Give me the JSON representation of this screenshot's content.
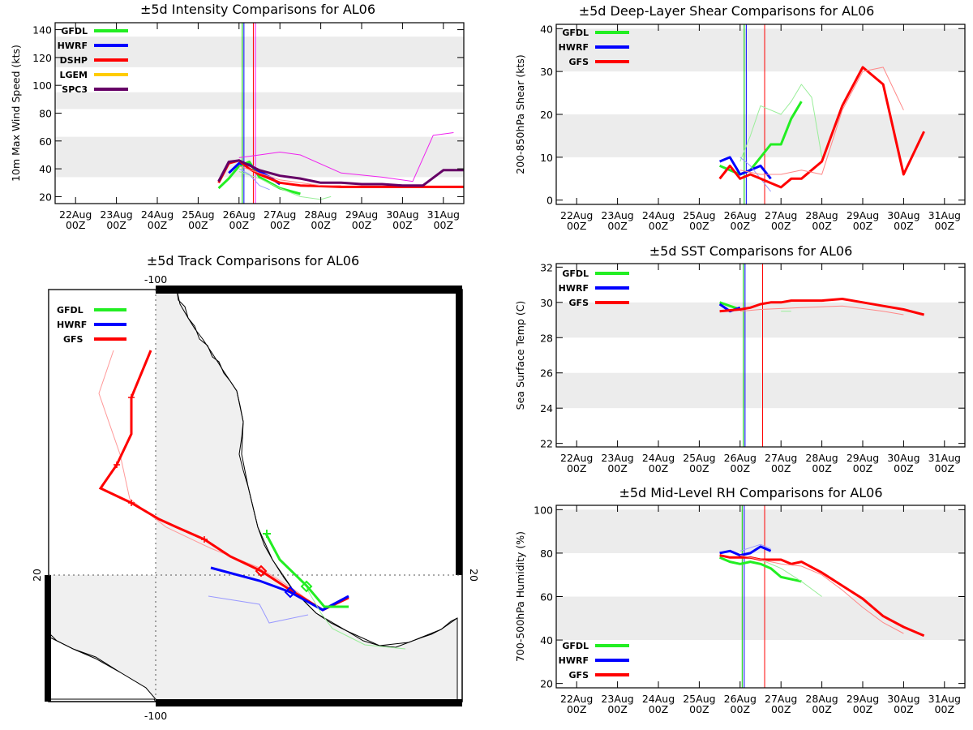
{
  "charts": {
    "intensity": {
      "type": "line",
      "title": "±5d Intensity Comparisons for AL06",
      "ylabel": "10m Max Wind Speed (kts)",
      "xlim": [
        0,
        10
      ],
      "ylim": [
        15,
        145
      ],
      "yticks": [
        "20",
        "40",
        "60",
        "80",
        "100",
        "120",
        "140"
      ],
      "bands": [
        [
          34,
          63
        ],
        [
          83,
          95
        ],
        [
          113,
          135
        ]
      ],
      "verticals": [
        {
          "x": 4.58,
          "color": "#00cc00"
        },
        {
          "x": 4.62,
          "color": "#0000ff"
        },
        {
          "x": 4.85,
          "color": "#ff0000"
        },
        {
          "x": 4.9,
          "color": "#ff00ff"
        }
      ],
      "legend": [
        "GFDL",
        "HWRF",
        "DSHP",
        "LGEM",
        "SPC3"
      ],
      "series": [
        {
          "name": "GFDL",
          "color": "#22ee22",
          "w": 3,
          "pts": [
            [
              4,
              26
            ],
            [
              4.25,
              33
            ],
            [
              4.5,
              42
            ],
            [
              4.75,
              45
            ],
            [
              5,
              34
            ],
            [
              5.5,
              26
            ],
            [
              6,
              22
            ]
          ]
        },
        {
          "name": "GFDL-prev",
          "color": "#99ee99",
          "w": 1,
          "pts": [
            [
              4.5,
              38
            ],
            [
              5,
              33
            ],
            [
              5.5,
              26
            ],
            [
              6,
              20
            ],
            [
              6.5,
              18
            ],
            [
              6.75,
              20
            ]
          ]
        },
        {
          "name": "HWRF",
          "color": "#0000ff",
          "w": 3,
          "pts": [
            [
              4.25,
              37
            ],
            [
              4.5,
              44
            ],
            [
              4.75,
              43
            ],
            [
              5,
              38
            ],
            [
              5.25,
              34
            ],
            [
              5.5,
              29
            ]
          ]
        },
        {
          "name": "HWRF-prev",
          "color": "#9999ff",
          "w": 1,
          "pts": [
            [
              4.5,
              40
            ],
            [
              4.75,
              36
            ],
            [
              5,
              28
            ],
            [
              5.25,
              25
            ]
          ]
        },
        {
          "name": "DSHP",
          "color": "#ff0000",
          "w": 3,
          "pts": [
            [
              4,
              30
            ],
            [
              4.25,
              44
            ],
            [
              4.5,
              46
            ],
            [
              4.75,
              40
            ],
            [
              5,
              36
            ],
            [
              5.5,
              30
            ],
            [
              6,
              28
            ],
            [
              7,
              27
            ],
            [
              8,
              27
            ],
            [
              9,
              27
            ],
            [
              10,
              27
            ]
          ]
        },
        {
          "name": "DSHP-prev",
          "color": "#ff8888",
          "w": 1,
          "pts": [
            [
              4.5,
              42
            ],
            [
              5,
              37
            ],
            [
              5.5,
              32
            ],
            [
              6,
              30
            ],
            [
              6.5,
              28
            ],
            [
              7,
              28
            ]
          ]
        },
        {
          "name": "SPC3",
          "color": "#660066",
          "w": 3,
          "pts": [
            [
              4,
              31
            ],
            [
              4.25,
              45
            ],
            [
              4.5,
              46
            ],
            [
              5,
              39
            ],
            [
              5.5,
              35
            ],
            [
              6,
              33
            ],
            [
              6.5,
              30
            ],
            [
              7,
              30
            ],
            [
              7.5,
              29
            ],
            [
              8,
              29
            ],
            [
              8.5,
              28
            ],
            [
              9,
              28
            ],
            [
              9.5,
              39
            ],
            [
              10,
              39
            ]
          ]
        },
        {
          "name": "SPC3-prev",
          "color": "#ee22ee",
          "w": 1,
          "pts": [
            [
              4.5,
              48
            ],
            [
              5,
              50
            ],
            [
              5.5,
              52
            ],
            [
              6,
              50
            ],
            [
              7,
              37
            ],
            [
              8,
              34
            ],
            [
              8.75,
              31
            ],
            [
              9.25,
              64
            ],
            [
              9.75,
              66
            ]
          ]
        }
      ]
    },
    "shear": {
      "type": "line",
      "title": "±5d Deep-Layer Shear Comparisons for AL06",
      "ylabel": "200-850hPa Shear (kts)",
      "xlim": [
        0,
        10
      ],
      "ylim": [
        -1,
        41
      ],
      "yticks": [
        "0",
        "10",
        "20",
        "30",
        "40"
      ],
      "bands": [
        [
          10,
          20
        ],
        [
          30,
          40
        ]
      ],
      "verticals": [
        {
          "x": 4.6,
          "color": "#00cc00"
        },
        {
          "x": 4.65,
          "color": "#0000ff"
        },
        {
          "x": 5.1,
          "color": "#ff0000"
        }
      ],
      "legend": [
        "GFDL",
        "HWRF",
        "GFS"
      ],
      "series": [
        {
          "name": "GFDL",
          "color": "#22ee22",
          "w": 3,
          "pts": [
            [
              4,
              8
            ],
            [
              4.25,
              7
            ],
            [
              4.5,
              6
            ],
            [
              4.75,
              7
            ],
            [
              5,
              10
            ],
            [
              5.25,
              13
            ],
            [
              5.5,
              13
            ],
            [
              5.75,
              19
            ],
            [
              6,
              23
            ]
          ]
        },
        {
          "name": "GFDL-prev",
          "color": "#99ee99",
          "w": 1,
          "pts": [
            [
              4.5,
              9
            ],
            [
              4.75,
              15
            ],
            [
              5,
              22
            ],
            [
              5.5,
              20
            ],
            [
              5.75,
              23
            ],
            [
              6,
              27
            ],
            [
              6.25,
              24
            ],
            [
              6.5,
              10
            ]
          ]
        },
        {
          "name": "HWRF",
          "color": "#0000ff",
          "w": 3,
          "pts": [
            [
              4,
              9
            ],
            [
              4.25,
              10
            ],
            [
              4.5,
              6
            ],
            [
              4.75,
              7
            ],
            [
              5,
              8
            ],
            [
              5.25,
              5
            ]
          ]
        },
        {
          "name": "HWRF-prev",
          "color": "#9999ff",
          "w": 1,
          "pts": [
            [
              4.5,
              10
            ],
            [
              4.75,
              8
            ],
            [
              5,
              5
            ],
            [
              5.25,
              2
            ]
          ]
        },
        {
          "name": "GFS",
          "color": "#ff0000",
          "w": 3,
          "pts": [
            [
              4,
              5
            ],
            [
              4.25,
              8
            ],
            [
              4.5,
              5
            ],
            [
              4.75,
              6
            ],
            [
              5,
              5
            ],
            [
              5.25,
              4
            ],
            [
              5.5,
              3
            ],
            [
              5.75,
              5
            ],
            [
              6,
              5
            ],
            [
              6.5,
              9
            ],
            [
              7,
              22
            ],
            [
              7.5,
              31
            ],
            [
              8,
              27
            ],
            [
              8.5,
              6
            ],
            [
              9,
              16
            ]
          ]
        },
        {
          "name": "GFS-prev",
          "color": "#ff8888",
          "w": 1,
          "pts": [
            [
              4.5,
              7
            ],
            [
              5,
              6
            ],
            [
              5.5,
              6
            ],
            [
              6,
              7
            ],
            [
              6.5,
              6
            ],
            [
              7,
              21
            ],
            [
              7.5,
              30
            ],
            [
              8,
              31
            ],
            [
              8.5,
              21
            ]
          ]
        }
      ]
    },
    "sst": {
      "type": "line",
      "title": "±5d SST Comparisons for AL06",
      "ylabel": "Sea Surface Temp (C)",
      "xlim": [
        0,
        10
      ],
      "ylim": [
        21.8,
        32.2
      ],
      "yticks": [
        "22",
        "24",
        "26",
        "28",
        "30",
        "32"
      ],
      "bands": [
        [
          24,
          26
        ],
        [
          28,
          30
        ]
      ],
      "verticals": [
        {
          "x": 4.58,
          "color": "#00cc00"
        },
        {
          "x": 4.62,
          "color": "#0000ff"
        },
        {
          "x": 5.05,
          "color": "#ff0000"
        }
      ],
      "legend": [
        "GFDL",
        "HWRF",
        "GFS"
      ],
      "series": [
        {
          "name": "GFDL",
          "color": "#22ee22",
          "w": 3,
          "pts": [
            [
              4,
              30.0
            ],
            [
              4.25,
              29.8
            ],
            [
              4.5,
              29.6
            ]
          ]
        },
        {
          "name": "GFDL-prev",
          "color": "#99ee99",
          "w": 1,
          "pts": [
            [
              5.5,
              29.5
            ],
            [
              5.75,
              29.5
            ]
          ]
        },
        {
          "name": "HWRF",
          "color": "#0000ff",
          "w": 3,
          "pts": [
            [
              4,
              29.9
            ],
            [
              4.25,
              29.5
            ],
            [
              4.5,
              29.7
            ]
          ]
        },
        {
          "name": "GFS",
          "color": "#ff0000",
          "w": 3,
          "pts": [
            [
              4,
              29.5
            ],
            [
              4.5,
              29.6
            ],
            [
              4.75,
              29.7
            ],
            [
              5,
              29.9
            ],
            [
              5.25,
              30.0
            ],
            [
              5.5,
              30.0
            ],
            [
              5.75,
              30.1
            ],
            [
              6,
              30.1
            ],
            [
              6.5,
              30.1
            ],
            [
              7,
              30.2
            ],
            [
              7.5,
              30.0
            ],
            [
              8,
              29.8
            ],
            [
              8.5,
              29.6
            ],
            [
              9,
              29.3
            ]
          ]
        },
        {
          "name": "GFS-prev",
          "color": "#ff8888",
          "w": 1,
          "pts": [
            [
              4.5,
              29.5
            ],
            [
              5,
              29.6
            ],
            [
              6,
              29.7
            ],
            [
              7,
              29.8
            ],
            [
              8,
              29.5
            ],
            [
              8.5,
              29.3
            ]
          ]
        }
      ]
    },
    "rh": {
      "type": "line",
      "title": "±5d Mid-Level RH Comparisons for AL06",
      "ylabel": "700-500hPa Humidity (%)",
      "xlim": [
        0,
        10
      ],
      "ylim": [
        18,
        102
      ],
      "yticks": [
        "20",
        "40",
        "60",
        "80",
        "100"
      ],
      "bands": [
        [
          40,
          60
        ],
        [
          80,
          100
        ]
      ],
      "verticals": [
        {
          "x": 4.55,
          "color": "#00cc00"
        },
        {
          "x": 4.6,
          "color": "#0000ff"
        },
        {
          "x": 5.1,
          "color": "#ff0000"
        }
      ],
      "legend": [
        "GFDL",
        "HWRF",
        "GFS"
      ],
      "series": [
        {
          "name": "GFDL",
          "color": "#22ee22",
          "w": 3,
          "pts": [
            [
              4,
              78
            ],
            [
              4.25,
              76
            ],
            [
              4.5,
              75
            ],
            [
              4.75,
              76
            ],
            [
              5,
              75
            ],
            [
              5.25,
              73
            ],
            [
              5.5,
              69
            ],
            [
              6,
              67
            ]
          ]
        },
        {
          "name": "GFDL-prev",
          "color": "#99ee99",
          "w": 1,
          "pts": [
            [
              4.5,
              78
            ],
            [
              5,
              77
            ],
            [
              5.5,
              73
            ],
            [
              6,
              67
            ],
            [
              6.5,
              60
            ]
          ]
        },
        {
          "name": "HWRF",
          "color": "#0000ff",
          "w": 3,
          "pts": [
            [
              4,
              80
            ],
            [
              4.25,
              81
            ],
            [
              4.5,
              79
            ],
            [
              4.75,
              80
            ],
            [
              5,
              83
            ],
            [
              5.25,
              81
            ]
          ]
        },
        {
          "name": "HWRF-prev",
          "color": "#9999ff",
          "w": 1,
          "pts": [
            [
              4.5,
              81
            ],
            [
              5,
              84
            ],
            [
              5.25,
              82
            ]
          ]
        },
        {
          "name": "GFS",
          "color": "#ff0000",
          "w": 3,
          "pts": [
            [
              4,
              79
            ],
            [
              4.25,
              78
            ],
            [
              4.5,
              78
            ],
            [
              4.75,
              78
            ],
            [
              5,
              77
            ],
            [
              5.5,
              77
            ],
            [
              5.75,
              75
            ],
            [
              6,
              76
            ],
            [
              6.5,
              71
            ],
            [
              7,
              65
            ],
            [
              7.5,
              59
            ],
            [
              8,
              51
            ],
            [
              8.5,
              46
            ],
            [
              9,
              42
            ]
          ]
        },
        {
          "name": "GFS-prev",
          "color": "#ff8888",
          "w": 1,
          "pts": [
            [
              4.5,
              79
            ],
            [
              5,
              77
            ],
            [
              5.5,
              75
            ],
            [
              6,
              74
            ],
            [
              6.5,
              70
            ],
            [
              7,
              63
            ],
            [
              7.5,
              55
            ],
            [
              8,
              48
            ],
            [
              8.5,
              43
            ]
          ]
        }
      ]
    }
  },
  "xaxis": {
    "days": [
      "22Aug",
      "23Aug",
      "24Aug",
      "25Aug",
      "26Aug",
      "27Aug",
      "28Aug",
      "29Aug",
      "30Aug",
      "31Aug"
    ],
    "hour": "00Z"
  },
  "track": {
    "title": "±5d Track Comparisons for AL06",
    "lon_label": "-100",
    "lat_label": "20",
    "legend": [
      "GFDL",
      "HWRF",
      "GFS"
    ]
  },
  "colors": {
    "band": "#ececec",
    "land": "#f0f0f0",
    "GFDL": "#22ee22",
    "HWRF": "#0000ff",
    "GFS": "#ff0000",
    "DSHP": "#ff0000",
    "LGEM": "#ffcc00",
    "SPC3": "#660066"
  }
}
